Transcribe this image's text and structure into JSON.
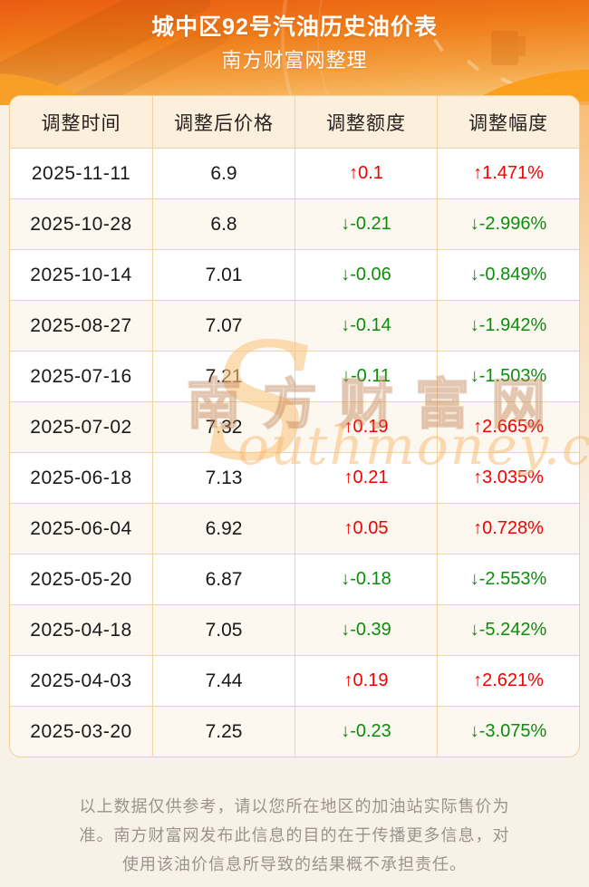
{
  "header": {
    "title": "城中区92号汽油历史油价表",
    "subtitle": "南方财富网整理"
  },
  "table": {
    "columns": [
      "调整时间",
      "调整后价格",
      "调整额度",
      "调整幅度"
    ],
    "rows": [
      {
        "date": "2025-11-11",
        "price": "6.9",
        "change": "↑0.1",
        "percent": "↑1.471%",
        "dir": "up"
      },
      {
        "date": "2025-10-28",
        "price": "6.8",
        "change": "↓-0.21",
        "percent": "↓-2.996%",
        "dir": "down"
      },
      {
        "date": "2025-10-14",
        "price": "7.01",
        "change": "↓-0.06",
        "percent": "↓-0.849%",
        "dir": "down"
      },
      {
        "date": "2025-08-27",
        "price": "7.07",
        "change": "↓-0.14",
        "percent": "↓-1.942%",
        "dir": "down"
      },
      {
        "date": "2025-07-16",
        "price": "7.21",
        "change": "↓-0.11",
        "percent": "↓-1.503%",
        "dir": "down"
      },
      {
        "date": "2025-07-02",
        "price": "7.32",
        "change": "↑0.19",
        "percent": "↑2.665%",
        "dir": "up"
      },
      {
        "date": "2025-06-18",
        "price": "7.13",
        "change": "↑0.21",
        "percent": "↑3.035%",
        "dir": "up"
      },
      {
        "date": "2025-06-04",
        "price": "6.92",
        "change": "↑0.05",
        "percent": "↑0.728%",
        "dir": "up"
      },
      {
        "date": "2025-05-20",
        "price": "6.87",
        "change": "↓-0.18",
        "percent": "↓-2.553%",
        "dir": "down"
      },
      {
        "date": "2025-04-18",
        "price": "7.05",
        "change": "↓-0.39",
        "percent": "↓-5.242%",
        "dir": "down"
      },
      {
        "date": "2025-04-03",
        "price": "7.44",
        "change": "↑0.19",
        "percent": "↑2.621%",
        "dir": "up"
      },
      {
        "date": "2025-03-20",
        "price": "7.25",
        "change": "↓-0.23",
        "percent": "↓-3.075%",
        "dir": "down"
      }
    ]
  },
  "watermark": {
    "initial": "S",
    "cn_text": "南方财富网",
    "en_text": "outhmoney.com"
  },
  "footer": {
    "disclaimer": "以上数据仅供参考，请以您所在地区的加油站实际售价为准。南方财富网发布此信息的目的在于传播更多信息，对使用该油价信息所导致的结果概不承担责任。"
  },
  "colors": {
    "accent_orange": "#ef7b18",
    "up_red": "#f40000",
    "down_green": "#0a8e0a",
    "table_border": "#f5d2a0",
    "header_cell_bg": "#fcefdc",
    "stripe_row_bg": "#fdf8ef",
    "page_bg": "#f8f1e7"
  }
}
